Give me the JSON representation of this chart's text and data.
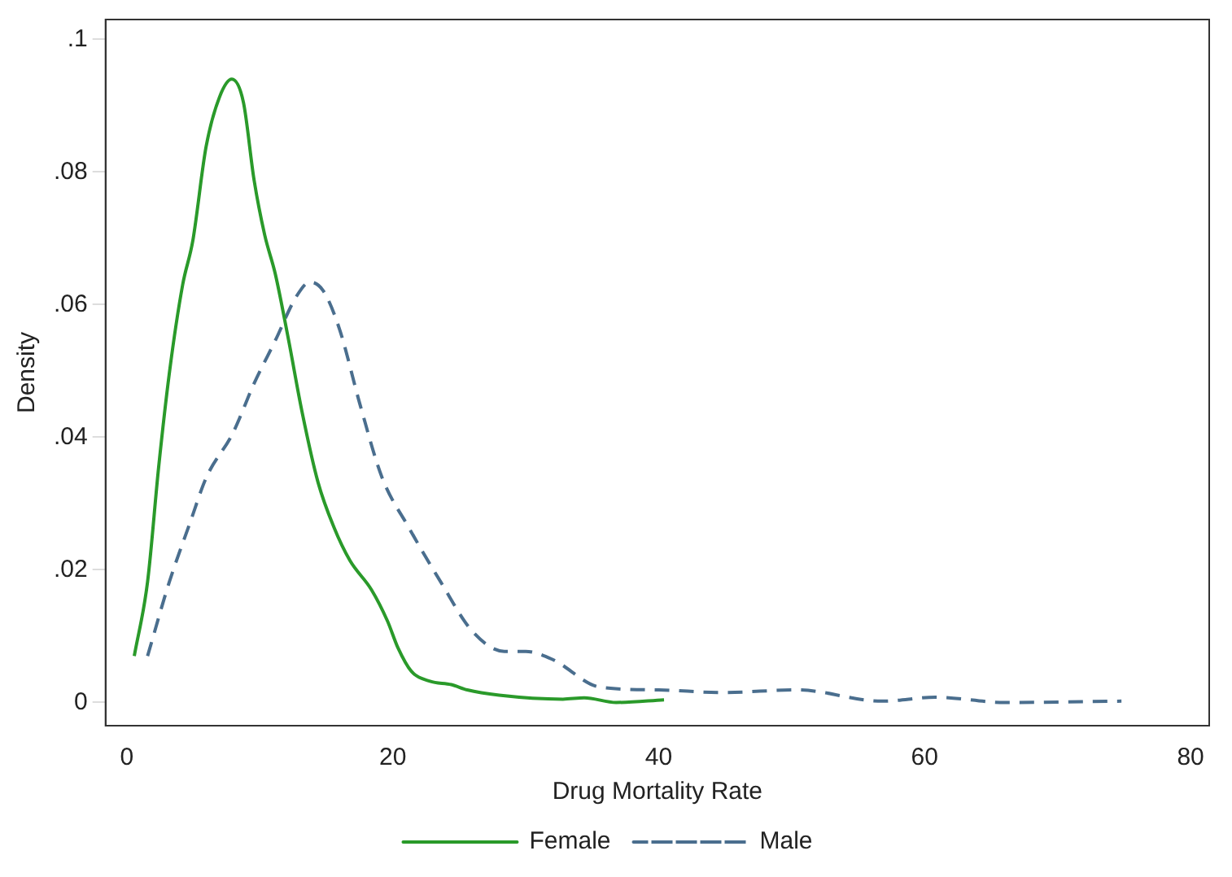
{
  "chart_data": {
    "type": "line",
    "xlabel": "Drug Mortality Rate",
    "ylabel": "Density",
    "xlim": [
      -1.6,
      81.4
    ],
    "xticks": [
      0,
      20,
      40,
      60,
      80
    ],
    "ylim": [
      -0.0035,
      0.103
    ],
    "yticks": [
      0,
      {
        "value": 0.02,
        "label": ".02"
      },
      {
        "value": 0.04,
        "label": ".04"
      },
      {
        "value": 0.06,
        "label": ".06"
      },
      {
        "value": 0.08,
        "label": ".08"
      },
      {
        "value": 0.1,
        "label": ".1"
      }
    ],
    "grid": false,
    "legend": "bottom",
    "marker": "none",
    "series": [
      {
        "name": "Female",
        "color": "#2a9a2a",
        "line_style": "solid",
        "x": [
          0.56,
          1.56,
          2.4,
          3.2,
          4.2,
          4.96,
          5.96,
          6.97,
          7.9,
          8.77,
          9.57,
          10.37,
          11.17,
          12.17,
          13.17,
          14.38,
          15.58,
          16.78,
          18.4,
          19.6,
          20.4,
          21.4,
          22.8,
          24.4,
          25.6,
          28.0,
          32.8,
          34.4,
          36.8,
          40.4
        ],
        "values": [
          0.007,
          0.0182,
          0.0356,
          0.0497,
          0.063,
          0.0696,
          0.0838,
          0.0913,
          0.094,
          0.0905,
          0.0788,
          0.0705,
          0.0646,
          0.0546,
          0.0439,
          0.0332,
          0.0264,
          0.0214,
          0.017,
          0.0123,
          0.0082,
          0.0047,
          0.0032,
          0.0027,
          0.0019,
          0.0011,
          0.0005,
          0.0007,
          0.0,
          0.0004
        ]
      },
      {
        "name": "Male",
        "color": "#4a6e8e",
        "line_style": "dashed",
        "x": [
          1.56,
          3.2,
          4.77,
          5.97,
          7.97,
          9.57,
          11.17,
          12.77,
          13.77,
          14.77,
          15.98,
          17.57,
          19.2,
          21.2,
          23.6,
          26.0,
          28.4,
          30.0,
          32.0,
          35.6,
          40.0,
          44.8,
          50.4,
          56.8,
          60.8,
          66.0,
          74.8
        ],
        "values": [
          0.007,
          0.0182,
          0.0272,
          0.0339,
          0.0406,
          0.0481,
          0.0546,
          0.0613,
          0.0634,
          0.0621,
          0.0564,
          0.0447,
          0.0339,
          0.0264,
          0.0182,
          0.0107,
          0.0077,
          0.0077,
          0.0065,
          0.0023,
          0.0019,
          0.0015,
          0.0019,
          0.0002,
          0.0008,
          0.0,
          0.0002
        ]
      }
    ]
  }
}
